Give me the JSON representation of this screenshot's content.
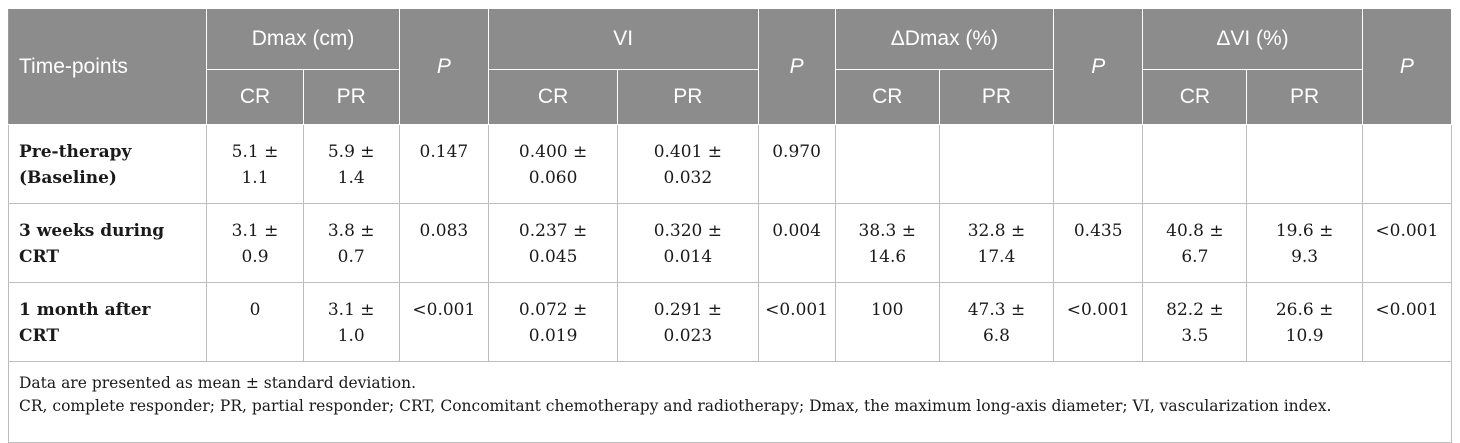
{
  "header": {
    "time_points": "Time-points",
    "dmax": "Dmax (cm)",
    "vi": "VI",
    "ddmax": "ΔDmax (%)",
    "dvi": "ΔVI (%)",
    "p": "P",
    "cr": "CR",
    "pr": "PR"
  },
  "rows": [
    {
      "label": [
        "Pre-therapy",
        "(Baseline)"
      ],
      "dmax_cr": [
        "5.1 ±",
        "1.1"
      ],
      "dmax_pr": [
        "5.9 ±",
        "1.4"
      ],
      "p1": "0.147",
      "vi_cr": [
        "0.400 ±",
        "0.060"
      ],
      "vi_pr": [
        "0.401 ±",
        "0.032"
      ],
      "p2": "0.970",
      "ddmax_cr": [
        "",
        ""
      ],
      "ddmax_pr": [
        "",
        ""
      ],
      "p3": "",
      "dvi_cr": [
        "",
        ""
      ],
      "dvi_pr": [
        "",
        ""
      ],
      "p4": ""
    },
    {
      "label": [
        "3 weeks during",
        "CRT"
      ],
      "dmax_cr": [
        "3.1 ±",
        "0.9"
      ],
      "dmax_pr": [
        "3.8 ±",
        "0.7"
      ],
      "p1": "0.083",
      "vi_cr": [
        "0.237 ±",
        "0.045"
      ],
      "vi_pr": [
        "0.320 ±",
        "0.014"
      ],
      "p2": "0.004",
      "ddmax_cr": [
        "38.3 ±",
        "14.6"
      ],
      "ddmax_pr": [
        "32.8 ±",
        "17.4"
      ],
      "p3": "0.435",
      "dvi_cr": [
        "40.8 ±",
        "6.7"
      ],
      "dvi_pr": [
        "19.6 ±",
        "9.3"
      ],
      "p4": "<0.001"
    },
    {
      "label": [
        "1 month after",
        "CRT"
      ],
      "dmax_cr": [
        "0",
        ""
      ],
      "dmax_pr": [
        "3.1 ±",
        "1.0"
      ],
      "p1": "<0.001",
      "vi_cr": [
        "0.072 ±",
        "0.019"
      ],
      "vi_pr": [
        "0.291 ±",
        "0.023"
      ],
      "p2": "<0.001",
      "ddmax_cr": [
        "100",
        ""
      ],
      "ddmax_pr": [
        "47.3 ±",
        "6.8"
      ],
      "p3": "<0.001",
      "dvi_cr": [
        "82.2 ±",
        "3.5"
      ],
      "dvi_pr": [
        "26.6 ±",
        "10.9"
      ],
      "p4": "<0.001"
    }
  ],
  "footnotes": [
    "Data are presented as mean ± standard deviation.",
    "CR, complete responder; PR, partial responder; CRT, Concomitant chemotherapy and radiotherapy; Dmax, the maximum long-axis diameter; VI, vascularization index."
  ]
}
